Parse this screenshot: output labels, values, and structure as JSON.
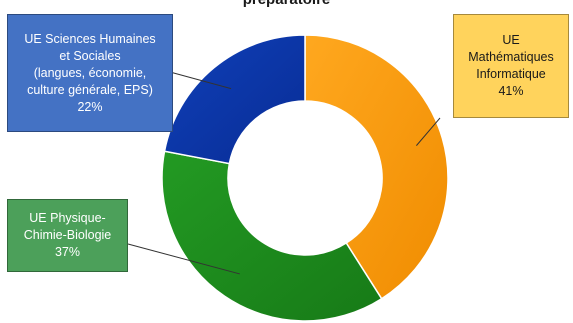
{
  "chart_data": {
    "type": "pie",
    "title": "préparatoire",
    "slices": [
      {
        "label": "UE\nMathématiques\nInformatique",
        "value": 41,
        "value_label": "41%",
        "color": "#FF9900"
      },
      {
        "label": "UE Physique-\nChimie-Biologie",
        "value": 37,
        "value_label": "37%",
        "color": "#1E8A1E"
      },
      {
        "label": "UE Sciences Humaines\net Sociales\n(langues, économie,\nculture générale, EPS)",
        "value": 22,
        "value_label": "22%",
        "color": "#0A35A8"
      }
    ],
    "legend": "none",
    "label_box_colors": [
      "#FFD35C",
      "#4CA05A",
      "#4472C4"
    ]
  }
}
